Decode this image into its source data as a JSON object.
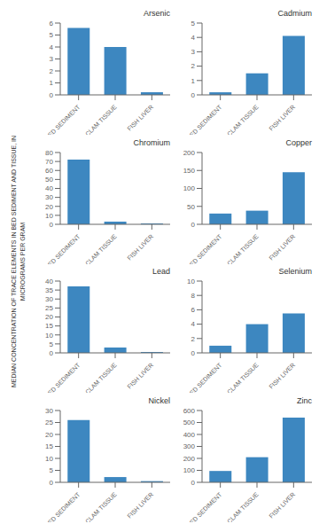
{
  "chart_data": [
    {
      "type": "bar",
      "title": "Arsenic",
      "categories": [
        "BED SEDIMENT",
        "CLAM TISSUE",
        "FISH LIVER"
      ],
      "values": [
        5.6,
        4.0,
        0.22
      ],
      "color": "#3d87c0",
      "ylim": [
        0,
        6
      ],
      "yticks": [
        0,
        1,
        2,
        3,
        4,
        5,
        6
      ]
    },
    {
      "type": "bar",
      "title": "Cadmium",
      "categories": [
        "BED SEDIMENT",
        "CLAM TISSUE",
        "FISH LIVER"
      ],
      "values": [
        0.18,
        1.5,
        4.1
      ],
      "color": "#3d87c0",
      "ylim": [
        0,
        5
      ],
      "yticks": [
        0,
        1,
        2,
        3,
        4,
        5
      ]
    },
    {
      "type": "bar",
      "title": "Chromium",
      "categories": [
        "BED SEDIMENT",
        "CLAM TISSUE",
        "FISH LIVER"
      ],
      "values": [
        72,
        3.0,
        1.0
      ],
      "color": "#3d87c0",
      "ylim": [
        0,
        80
      ],
      "yticks": [
        0,
        10,
        20,
        30,
        40,
        50,
        60,
        70,
        80
      ]
    },
    {
      "type": "bar",
      "title": "Copper",
      "categories": [
        "BED SEDIMENT",
        "CLAM TISSUE",
        "FISH LIVER"
      ],
      "values": [
        30,
        38,
        145
      ],
      "color": "#3d87c0",
      "ylim": [
        0,
        200
      ],
      "yticks": [
        0,
        50,
        100,
        150,
        200
      ]
    },
    {
      "type": "bar",
      "title": "Lead",
      "categories": [
        "BED SEDIMENT",
        "CLAM TISSUE",
        "FISH LIVER"
      ],
      "values": [
        37,
        3.0,
        0.5
      ],
      "color": "#3d87c0",
      "ylim": [
        0,
        40
      ],
      "yticks": [
        0,
        5,
        10,
        15,
        20,
        25,
        30,
        35,
        40
      ]
    },
    {
      "type": "bar",
      "title": "Selenium",
      "categories": [
        "BED SEDIMENT",
        "CLAM TISSUE",
        "FISH LIVER"
      ],
      "values": [
        1.0,
        4.0,
        5.5
      ],
      "color": "#3d87c0",
      "ylim": [
        0,
        10
      ],
      "yticks": [
        0,
        2,
        4,
        6,
        8,
        10
      ]
    },
    {
      "type": "bar",
      "title": "Nickel",
      "categories": [
        "BED SEDIMENT",
        "CLAM TISSUE",
        "FISH LIVER"
      ],
      "values": [
        26,
        2.2,
        0.5
      ],
      "color": "#3d87c0",
      "ylim": [
        0,
        30
      ],
      "yticks": [
        0,
        5,
        10,
        15,
        20,
        25,
        30
      ]
    },
    {
      "type": "bar",
      "title": "Zinc",
      "categories": [
        "BED SEDIMENT",
        "CLAM TISSUE",
        "FISH LIVER"
      ],
      "values": [
        95,
        210,
        540
      ],
      "color": "#3d87c0",
      "ylim": [
        0,
        600
      ],
      "yticks": [
        0,
        100,
        200,
        300,
        400,
        500,
        600
      ]
    }
  ],
  "ylabel": "MEDIAN CONCENTRATION OF TRACE ELEMENTS IN BED SEDIMENT AND TISSUE, IN\nMICROGRAMS PER GRAM"
}
